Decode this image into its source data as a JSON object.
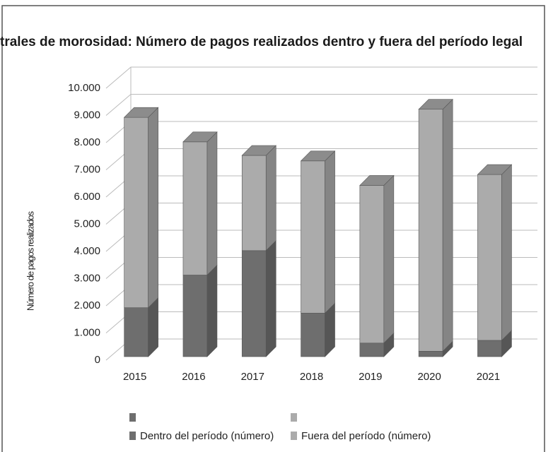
{
  "chart_data": {
    "type": "bar3d_stacked",
    "title": "trales de morosidad: Número de pagos realizados dentro y fuera del período legal",
    "y_label": "Número de pagos realizados",
    "categories": [
      "2015",
      "2016",
      "2017",
      "2018",
      "2019",
      "2020",
      "2021"
    ],
    "series": [
      {
        "name": "Dentro del período (número)",
        "color": "#6e6e6e",
        "values": [
          1800,
          3000,
          3900,
          1600,
          500,
          200,
          600
        ]
      },
      {
        "name": "Fuera del período (número)",
        "color": "#ababab",
        "values": [
          7000,
          4900,
          3500,
          5600,
          5800,
          8900,
          6100
        ]
      }
    ],
    "ylim": [
      0,
      10000
    ],
    "yticks": [
      0,
      {
        "value": 1000,
        "label": "1.000"
      },
      {
        "value": 2000,
        "label": "2.000"
      },
      {
        "value": 3000,
        "label": "3.000"
      },
      {
        "value": 4000,
        "label": "4.000"
      },
      {
        "value": 5000,
        "label": "5.000"
      },
      {
        "value": 6000,
        "label": "6.000"
      },
      {
        "value": 7000,
        "label": "7.000"
      },
      {
        "value": 8000,
        "label": "8.000"
      },
      {
        "value": 9000,
        "label": "9.000"
      },
      {
        "value": 10000,
        "label": "10.000"
      }
    ],
    "grid": true
  }
}
